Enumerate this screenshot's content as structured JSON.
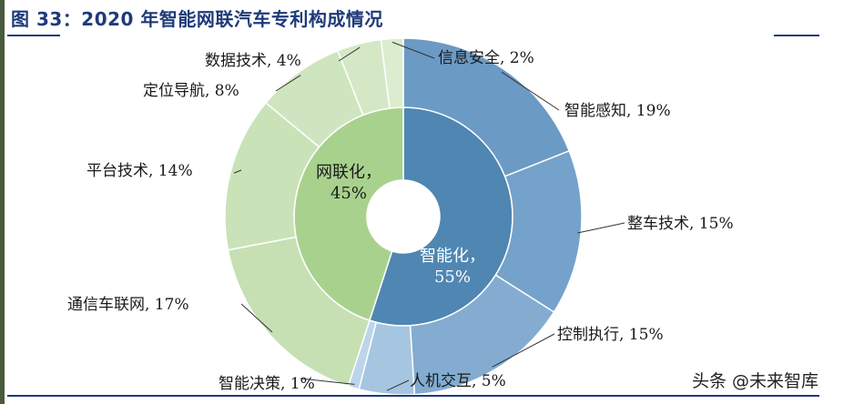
{
  "figure": {
    "title": "图 33：2020 年智能网联汽车专利构成情况",
    "watermark": "头条 @未来智库"
  },
  "colors": {
    "title": "#1f3a7a",
    "blue_inner": "#4f86b2",
    "green_inner": "#a9d18e",
    "blue_outer": [
      "#6b9ac4",
      "#75a2ca",
      "#83acd0",
      "#a6c5e0",
      "#bdd5ea"
    ],
    "green_outer": [
      "#c6e0b4",
      "#c9e2b8",
      "#cfe5bf",
      "#d5e8c6",
      "#dcedcf"
    ]
  },
  "chart_data": {
    "type": "pie",
    "subtype": "sunburst-donut",
    "inner": [
      {
        "name": "智能化",
        "value": 55,
        "label": "智能化，",
        "pct_label": "55%"
      },
      {
        "name": "网联化",
        "value": 45,
        "label": "网联化，",
        "pct_label": "45%"
      }
    ],
    "outer": [
      {
        "name": "智能感知",
        "value": 19,
        "group": "智能化",
        "label": "智能感知, 19%"
      },
      {
        "name": "整车技术",
        "value": 15,
        "group": "智能化",
        "label": "整车技术, 15%"
      },
      {
        "name": "控制执行",
        "value": 15,
        "group": "智能化",
        "label": "控制执行, 15%"
      },
      {
        "name": "人机交互",
        "value": 5,
        "group": "智能化",
        "label": "人机交互, 5%"
      },
      {
        "name": "智能决策",
        "value": 1,
        "group": "智能化",
        "label": "智能决策, 1%"
      },
      {
        "name": "通信车联网",
        "value": 17,
        "group": "网联化",
        "label": "通信车联网, 17%"
      },
      {
        "name": "平台技术",
        "value": 14,
        "group": "网联化",
        "label": "平台技术, 14%"
      },
      {
        "name": "定位导航",
        "value": 8,
        "group": "网联化",
        "label": "定位导航, 8%"
      },
      {
        "name": "数据技术",
        "value": 4,
        "group": "网联化",
        "label": "数据技术, 4%"
      },
      {
        "name": "信息安全",
        "value": 2,
        "group": "网联化",
        "label": "信息安全, 2%"
      }
    ]
  }
}
